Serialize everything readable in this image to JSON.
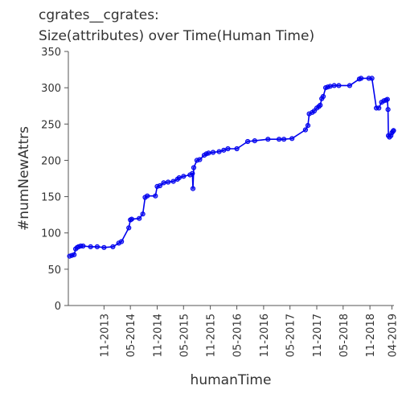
{
  "chart_data": {
    "type": "line",
    "title_line1": "cgrates__cgrates:",
    "title_line2": "Size(attributes) over Time(Human Time)",
    "xlabel": "humanTime",
    "ylabel": "#numNewAttrs",
    "ylim": [
      0,
      350
    ],
    "yticks": [
      0,
      50,
      100,
      150,
      200,
      250,
      300,
      350
    ],
    "xlim": [
      "2013-03-01",
      "2019-04-15"
    ],
    "xticks": [
      {
        "label": "11-2013",
        "date": "2013-11-01"
      },
      {
        "label": "05-2014",
        "date": "2014-05-01"
      },
      {
        "label": "11-2014",
        "date": "2014-11-01"
      },
      {
        "label": "05-2015",
        "date": "2015-05-01"
      },
      {
        "label": "11-2015",
        "date": "2015-11-01"
      },
      {
        "label": "05-2016",
        "date": "2016-05-01"
      },
      {
        "label": "11-2016",
        "date": "2016-11-01"
      },
      {
        "label": "05-2017",
        "date": "2017-05-01"
      },
      {
        "label": "11-2017",
        "date": "2017-11-01"
      },
      {
        "label": "05-2018",
        "date": "2018-05-01"
      },
      {
        "label": "11-2018",
        "date": "2018-11-01"
      },
      {
        "label": "04-2019",
        "date": "2019-04-01"
      }
    ],
    "grid": false,
    "series": [
      {
        "color": "#0000ee",
        "points": [
          [
            "2013-03-10",
            68
          ],
          [
            "2013-03-25",
            69
          ],
          [
            "2013-04-10",
            70
          ],
          [
            "2013-04-20",
            78
          ],
          [
            "2013-05-01",
            80
          ],
          [
            "2013-05-10",
            81
          ],
          [
            "2013-05-25",
            82
          ],
          [
            "2013-06-10",
            82
          ],
          [
            "2013-08-01",
            81
          ],
          [
            "2013-09-15",
            81
          ],
          [
            "2013-11-01",
            80
          ],
          [
            "2014-01-01",
            81
          ],
          [
            "2014-02-10",
            86
          ],
          [
            "2014-03-01",
            88
          ],
          [
            "2014-04-20",
            107
          ],
          [
            "2014-05-01",
            118
          ],
          [
            "2014-05-10",
            119
          ],
          [
            "2014-07-01",
            120
          ],
          [
            "2014-07-25",
            126
          ],
          [
            "2014-08-10",
            149
          ],
          [
            "2014-08-25",
            151
          ],
          [
            "2014-10-20",
            151
          ],
          [
            "2014-11-01",
            164
          ],
          [
            "2014-11-20",
            165
          ],
          [
            "2014-12-15",
            169
          ],
          [
            "2015-01-15",
            170
          ],
          [
            "2015-02-20",
            171
          ],
          [
            "2015-03-20",
            174
          ],
          [
            "2015-04-01",
            176
          ],
          [
            "2015-05-01",
            178
          ],
          [
            "2015-06-15",
            180
          ],
          [
            "2015-07-01",
            182
          ],
          [
            "2015-07-05",
            161
          ],
          [
            "2015-07-10",
            190
          ],
          [
            "2015-08-01",
            200
          ],
          [
            "2015-08-20",
            201
          ],
          [
            "2015-09-20",
            207
          ],
          [
            "2015-10-05",
            209
          ],
          [
            "2015-10-20",
            210
          ],
          [
            "2015-11-20",
            211
          ],
          [
            "2016-01-01",
            212
          ],
          [
            "2016-02-01",
            214
          ],
          [
            "2016-03-01",
            216
          ],
          [
            "2016-05-01",
            216
          ],
          [
            "2016-07-15",
            226
          ],
          [
            "2016-09-01",
            227
          ],
          [
            "2016-12-01",
            229
          ],
          [
            "2017-02-15",
            229
          ],
          [
            "2017-03-20",
            229
          ],
          [
            "2017-05-15",
            230
          ],
          [
            "2017-08-15",
            242
          ],
          [
            "2017-09-01",
            248
          ],
          [
            "2017-09-10",
            264
          ],
          [
            "2017-10-01",
            266
          ],
          [
            "2017-10-15",
            268
          ],
          [
            "2017-11-01",
            272
          ],
          [
            "2017-11-15",
            274
          ],
          [
            "2017-11-25",
            276
          ],
          [
            "2017-12-05",
            285
          ],
          [
            "2017-12-15",
            288
          ],
          [
            "2018-01-01",
            300
          ],
          [
            "2018-01-15",
            301
          ],
          [
            "2018-02-01",
            302
          ],
          [
            "2018-03-01",
            303
          ],
          [
            "2018-04-01",
            303
          ],
          [
            "2018-06-15",
            303
          ],
          [
            "2018-08-20",
            312
          ],
          [
            "2018-09-01",
            313
          ],
          [
            "2018-10-25",
            313
          ],
          [
            "2018-11-15",
            313
          ],
          [
            "2018-12-15",
            272
          ],
          [
            "2019-01-01",
            272
          ],
          [
            "2019-01-20",
            280
          ],
          [
            "2019-02-05",
            282
          ],
          [
            "2019-02-20",
            283
          ],
          [
            "2019-03-01",
            284
          ],
          [
            "2019-03-05",
            270
          ],
          [
            "2019-03-08",
            234
          ],
          [
            "2019-03-15",
            232
          ],
          [
            "2019-03-25",
            234
          ],
          [
            "2019-04-01",
            238
          ],
          [
            "2019-04-08",
            240
          ],
          [
            "2019-04-12",
            241
          ]
        ]
      }
    ]
  }
}
